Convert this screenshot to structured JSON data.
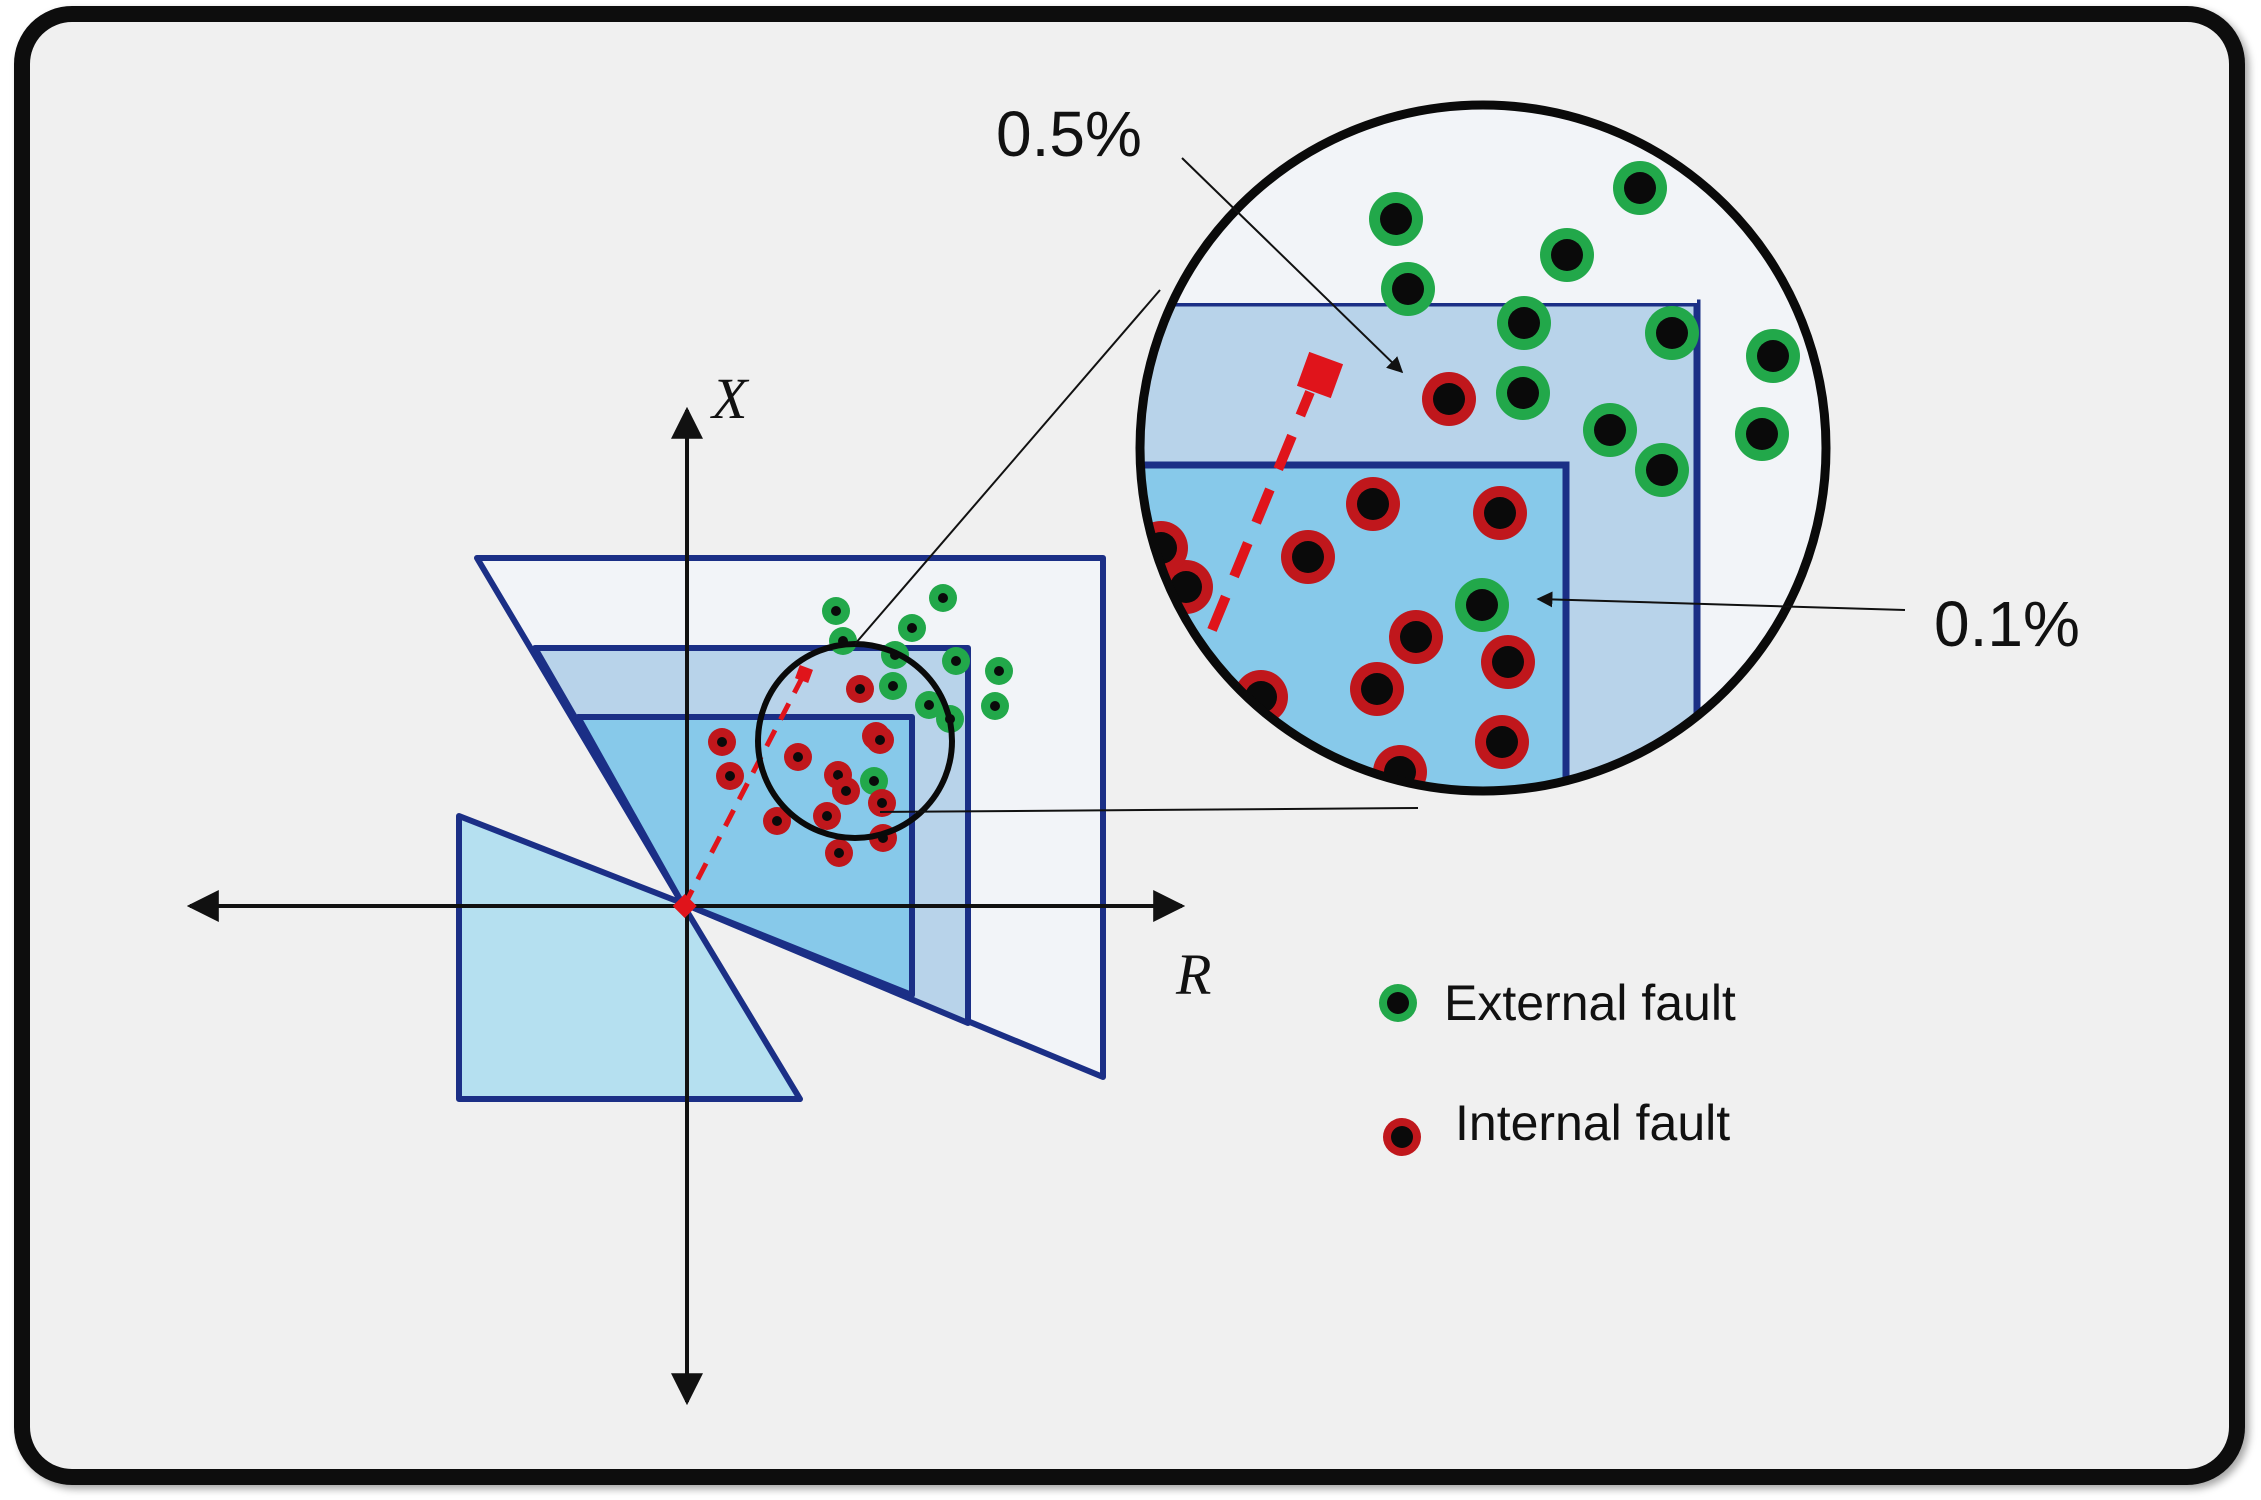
{
  "axes": {
    "x_axis_label": "R",
    "y_axis_label": "X"
  },
  "callouts": {
    "outer_zone_label": "0.5%",
    "inner_zone_label": "0.1%"
  },
  "legend": {
    "external": {
      "label": "External fault",
      "color": "#22a84a"
    },
    "internal": {
      "label": "Internal fault",
      "color": "#c0171c"
    }
  },
  "colors": {
    "zone_outline": "#1b2f86",
    "zone_outer_fill": "#f2f4f8",
    "zone_middle_fill": "#b8d3ea",
    "zone_inner_fill": "#87c9ea",
    "reverse_zone_fill": "#b5e0f0",
    "trajectory": "#e0141b",
    "dot_core": "#0a0a0a",
    "background": "#f0f0f0"
  },
  "icons": {
    "external_marker": "green-ring-dot-icon",
    "internal_marker": "red-ring-dot-icon"
  }
}
